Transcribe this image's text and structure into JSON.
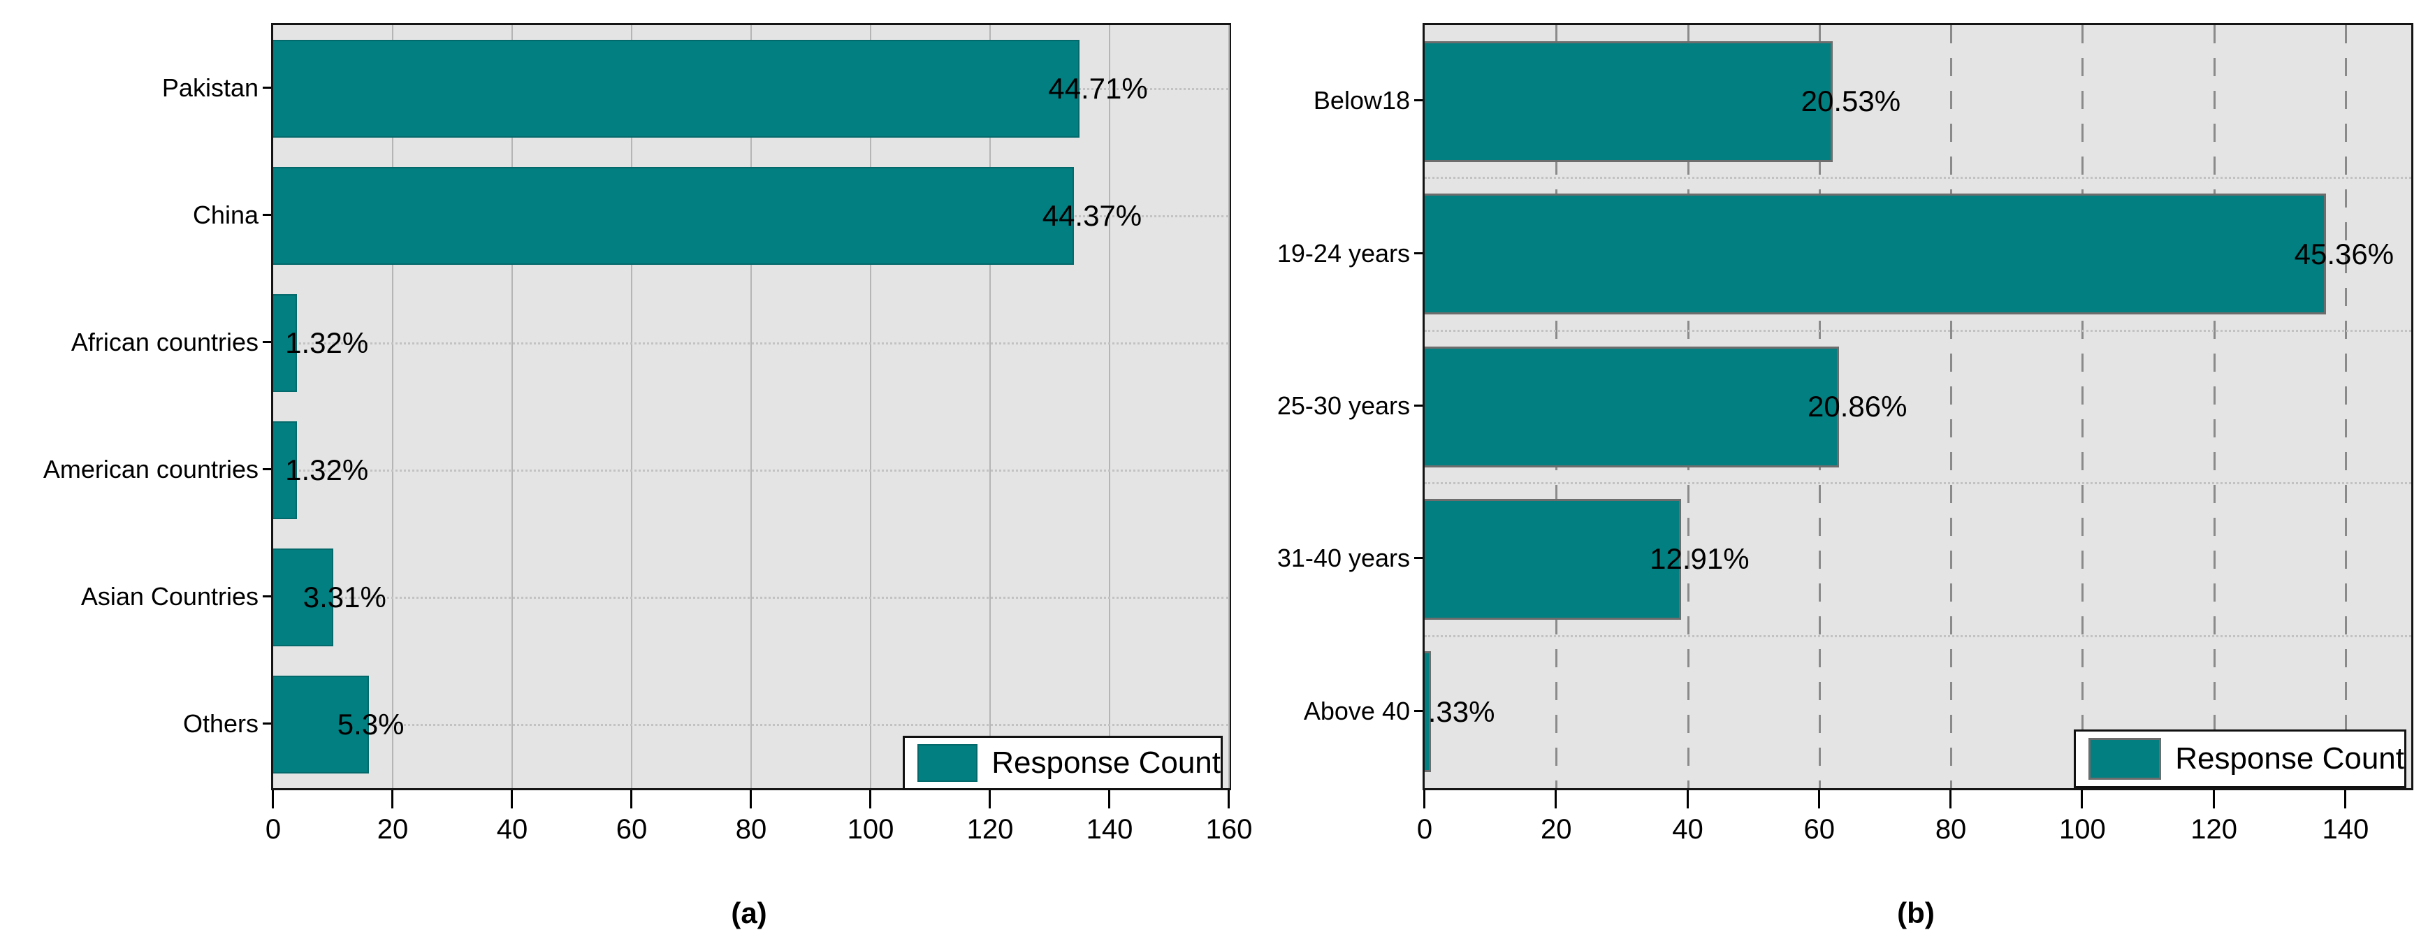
{
  "style": {
    "bar_color": "#027f81",
    "bar_border_chart_a": "#04696b",
    "bar_border_chart_b": "#6d6d6d",
    "plot_background": "#e4e4e4",
    "grid_solid_color": "#b5b5b5",
    "grid_dashed_color": "#8a8a8a",
    "leader_dotted_color": "#c2c2c2",
    "axis_color": "#141414"
  },
  "chart_data": [
    {
      "type": "bar",
      "orientation": "horizontal",
      "caption": "(a)",
      "categories": [
        "Pakistan",
        "China",
        "African countries",
        "American countries",
        "Asian Countries",
        "Others"
      ],
      "series": [
        {
          "name": "Response Count",
          "values": [
            135,
            134,
            4,
            4,
            10,
            16
          ]
        }
      ],
      "value_labels": [
        "44.71%",
        "44.37%",
        "1.32%",
        "1.32%",
        "3.31%",
        "5.3%"
      ],
      "xlabel": "",
      "ylabel": "",
      "xlim": [
        0,
        160
      ],
      "xticks": [
        0,
        20,
        40,
        60,
        80,
        100,
        120,
        140,
        160
      ],
      "grid": "solid-vertical",
      "legend": {
        "label": "Response Count",
        "position": "bottom-right"
      }
    },
    {
      "type": "bar",
      "orientation": "horizontal",
      "caption": "(b)",
      "categories": [
        "Below18",
        "19-24 years",
        "25-30 years",
        "31-40 years",
        "Above 40"
      ],
      "series": [
        {
          "name": "Response Count",
          "values": [
            62,
            137,
            63,
            39,
            1
          ]
        }
      ],
      "value_labels": [
        "20.53%",
        "45.36%",
        "20.86%",
        "12.91%",
        ".33%"
      ],
      "xlabel": "",
      "ylabel": "",
      "xlim": [
        0,
        150
      ],
      "xticks": [
        0,
        20,
        40,
        60,
        80,
        100,
        120,
        140
      ],
      "grid": "dashed-vertical",
      "legend": {
        "label": "Response Count",
        "position": "bottom-right"
      }
    }
  ]
}
